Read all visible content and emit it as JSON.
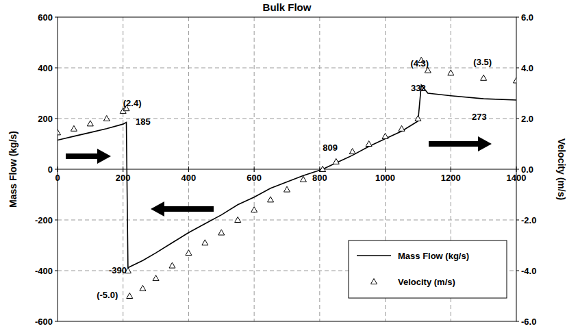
{
  "chart_data": {
    "type": "line",
    "title": "Bulk Flow",
    "y_label": "Mass Flow (kg/s)",
    "y2_label": "Velocity (m/s)",
    "x": [
      0,
      50,
      100,
      150,
      200,
      210,
      215,
      220,
      260,
      300,
      350,
      400,
      450,
      500,
      550,
      600,
      650,
      700,
      750,
      809,
      850,
      900,
      950,
      1000,
      1050,
      1100,
      1110,
      1130,
      1200,
      1300,
      1400
    ],
    "series": [
      {
        "name": "Mass Flow (kg/s)",
        "color": "#000000",
        "line_style": "solid",
        "values": [
          115,
          130,
          145,
          160,
          178,
          185,
          -390,
          -385,
          -360,
          -330,
          -290,
          -250,
          -215,
          -180,
          -140,
          -110,
          -75,
          -50,
          -25,
          0,
          25,
          55,
          90,
          120,
          150,
          190,
          332,
          300,
          290,
          278,
          273
        ]
      },
      {
        "name": "Velocity (m/s)",
        "color": "#000000",
        "type": "scatter",
        "marker": "triangle",
        "axis": "y2",
        "values": [
          1.45,
          1.6,
          1.8,
          2.0,
          2.3,
          2.4,
          -4.0,
          -5.0,
          -4.7,
          -4.3,
          -3.8,
          -3.3,
          -2.9,
          -2.5,
          -2.0,
          -1.6,
          -1.2,
          -0.8,
          -0.4,
          0,
          0.3,
          0.7,
          1.0,
          1.3,
          1.6,
          2.0,
          4.3,
          3.9,
          3.8,
          3.6,
          3.5
        ]
      }
    ],
    "xlim": [
      0,
      1400
    ],
    "xticks": [
      0,
      200,
      400,
      600,
      800,
      1000,
      1200,
      1400
    ],
    "ylim": [
      -600,
      600
    ],
    "yticks": [
      -600,
      -400,
      -200,
      0,
      200,
      400,
      600
    ],
    "y2lim": [
      -6,
      6
    ],
    "y2ticks": [
      {
        "value": -6,
        "label": "-6.0"
      },
      {
        "value": -4,
        "label": "-4.0"
      },
      {
        "value": -2,
        "label": "-2.0"
      },
      {
        "value": 0,
        "label": "0.0"
      },
      {
        "value": 2,
        "label": "2.0"
      },
      {
        "value": 4,
        "label": "4.0"
      },
      {
        "value": 6,
        "label": "6.0"
      }
    ],
    "grid": true,
    "legend": "lower right",
    "annotations": [
      {
        "text": "(2.4)",
        "x": 228,
        "y": 262
      },
      {
        "text": "185",
        "x": 261,
        "y": 189
      },
      {
        "text": "(4.3)",
        "x": 1105,
        "y": 419
      },
      {
        "text": "332",
        "x": 1101,
        "y": 322
      },
      {
        "text": "(3.5)",
        "x": 1297,
        "y": 424
      },
      {
        "text": "273",
        "x": 1287,
        "y": 208
      },
      {
        "text": "809",
        "x": 832,
        "y": 86
      },
      {
        "text": "-390",
        "x": 184,
        "y": -397
      },
      {
        "text": "(-5.0)",
        "x": 152,
        "y": -495
      }
    ]
  }
}
